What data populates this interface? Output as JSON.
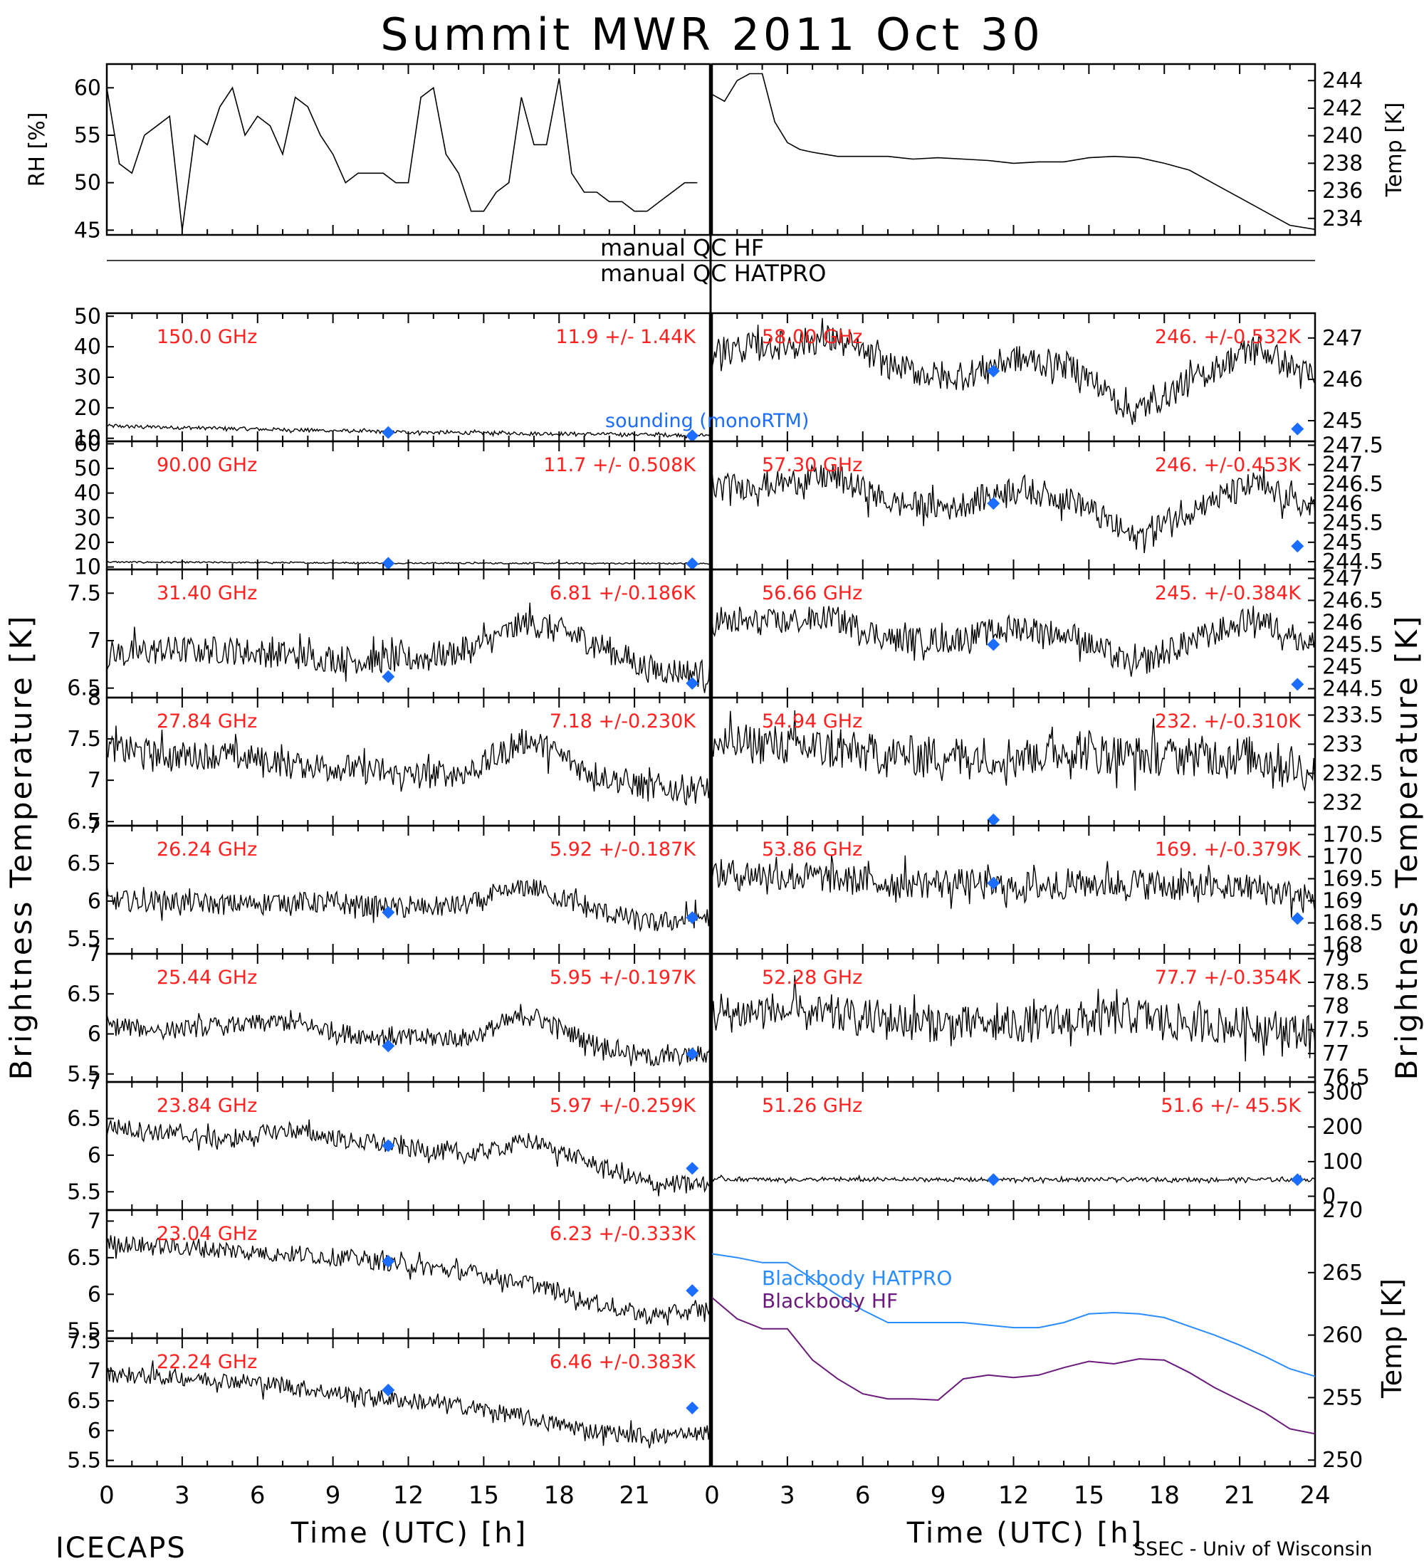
{
  "title": "Summit MWR 2011 Oct 30",
  "footer": {
    "left": "ICECAPS",
    "right": "SSEC - Univ of Wisconsin"
  },
  "xlabel": "Time (UTC) [h]",
  "ylabel_left": "Brightness Temperature [K]",
  "ylabel_right": "Brightness Temperature [K]",
  "qc": {
    "hf": "manual QC HF",
    "hatpro": "manual QC HATPRO"
  },
  "sounding_label": "sounding (monoRTM)",
  "colors": {
    "data": "#000000",
    "stats": "#ff2020",
    "sounding": "#1a6dff",
    "bb_hatpro": "#2a8cff",
    "bb_hf": "#6a1a7a"
  },
  "chart_data": [
    {
      "type": "line",
      "panel": "rh",
      "ylabel": "RH [%]",
      "ylim": [
        44.5,
        62.5
      ],
      "yticks": [
        45,
        50,
        55,
        60
      ],
      "xlim": [
        0,
        24
      ],
      "x": [
        0,
        0.5,
        1,
        1.5,
        2,
        2.5,
        3,
        3.5,
        4,
        4.5,
        5,
        5.5,
        6,
        6.5,
        7,
        7.5,
        8,
        8.5,
        9,
        9.5,
        10,
        10.5,
        11,
        11.5,
        12,
        12.5,
        13,
        13.5,
        14,
        14.5,
        15,
        15.5,
        16,
        16.5,
        17,
        17.5,
        18,
        18.5,
        19,
        19.5,
        20,
        20.5,
        21,
        21.5,
        22,
        22.5,
        23,
        23.5
      ],
      "values": [
        60,
        52,
        51,
        55,
        56,
        57,
        45,
        55,
        54,
        58,
        60,
        55,
        57,
        56,
        53,
        59,
        58,
        55,
        53,
        50,
        51,
        51,
        51,
        50,
        50,
        59,
        60,
        53,
        51,
        47,
        47,
        49,
        50,
        59,
        54,
        54,
        61,
        51,
        49,
        49,
        48,
        48,
        47,
        47,
        48,
        49,
        50,
        50
      ]
    },
    {
      "type": "line",
      "panel": "temp",
      "ylabel": "Temp [K]",
      "ylim": [
        232.8,
        245.2
      ],
      "yticks": [
        234,
        236,
        238,
        240,
        242,
        244
      ],
      "xlim": [
        0,
        24
      ],
      "x": [
        0,
        0.5,
        1,
        1.5,
        2,
        2.5,
        3,
        3.5,
        4,
        5,
        6,
        7,
        8,
        9,
        10,
        11,
        12,
        13,
        14,
        15,
        16,
        17,
        18,
        19,
        20,
        21,
        22,
        23,
        24
      ],
      "values": [
        243,
        242.5,
        244,
        244.5,
        244.5,
        241,
        239.5,
        239,
        238.8,
        238.5,
        238.5,
        238.5,
        238.3,
        238.4,
        238.3,
        238.2,
        238.0,
        238.1,
        238.1,
        238.4,
        238.5,
        238.4,
        238.0,
        237.5,
        236.5,
        235.5,
        234.5,
        233.5,
        233.2
      ]
    },
    {
      "type": "line",
      "panel": "hf",
      "freq": "150.0 GHz",
      "stats": "11.9 +/- 1.44K",
      "ylim": [
        9,
        51
      ],
      "yticks": [
        10,
        20,
        30,
        40,
        50
      ],
      "xlim": [
        0,
        24
      ],
      "base": [
        14,
        13,
        12,
        11.5,
        11
      ],
      "noise": 0.6,
      "sounding": [
        [
          11.2,
          11.9
        ],
        [
          23.3,
          10.8
        ]
      ]
    },
    {
      "type": "line",
      "panel": "hf",
      "freq": "90.00 GHz",
      "stats": "11.7 +/- 0.508K",
      "ylim": [
        9,
        61
      ],
      "yticks": [
        10,
        20,
        30,
        40,
        50,
        60
      ],
      "xlim": [
        0,
        24
      ],
      "base": [
        12,
        11.8,
        11.6,
        11.5,
        11.4
      ],
      "noise": 0.3,
      "sounding": [
        [
          11.2,
          11.5
        ],
        [
          23.3,
          11.3
        ]
      ]
    },
    {
      "type": "line",
      "panel": "hatpro",
      "freq": "31.40 GHz",
      "stats": "6.81 +/-0.186K",
      "ylim": [
        6.4,
        7.75
      ],
      "yticks": [
        6.5,
        7.0,
        7.5
      ],
      "xlim": [
        0,
        24
      ],
      "base": [
        6.85,
        6.9,
        6.9,
        6.85,
        6.8,
        6.8,
        6.9,
        7.2,
        7.0,
        6.7,
        6.65
      ],
      "noise": 0.15,
      "sounding": [
        [
          11.2,
          6.62
        ],
        [
          23.3,
          6.55
        ]
      ]
    },
    {
      "type": "line",
      "panel": "hatpro",
      "freq": "27.84 GHz",
      "stats": "7.18 +/-0.230K",
      "ylim": [
        6.45,
        8.0
      ],
      "yticks": [
        6.5,
        7.0,
        7.5,
        8.0
      ],
      "xlim": [
        0,
        24
      ],
      "base": [
        7.4,
        7.3,
        7.3,
        7.2,
        7.15,
        7.05,
        7.1,
        7.5,
        7.1,
        6.9,
        6.9
      ],
      "noise": 0.17,
      "sounding": []
    },
    {
      "type": "line",
      "panel": "hatpro",
      "freq": "26.24 GHz",
      "stats": "5.92 +/-0.187K",
      "ylim": [
        5.3,
        7.0
      ],
      "yticks": [
        5.5,
        6.0,
        6.5,
        7.0
      ],
      "xlim": [
        0,
        24
      ],
      "base": [
        6.0,
        6.0,
        5.95,
        6.0,
        5.95,
        5.9,
        5.95,
        6.2,
        5.9,
        5.7,
        5.8
      ],
      "noise": 0.14,
      "sounding": [
        [
          11.2,
          5.85
        ],
        [
          23.3,
          5.78
        ]
      ]
    },
    {
      "type": "line",
      "panel": "hatpro",
      "freq": "25.44 GHz",
      "stats": "5.95 +/-0.197K",
      "ylim": [
        5.4,
        7.0
      ],
      "yticks": [
        5.5,
        6.0,
        6.5,
        7.0
      ],
      "xlim": [
        0,
        24
      ],
      "base": [
        6.1,
        6.05,
        6.1,
        6.15,
        6.0,
        5.95,
        5.95,
        6.25,
        5.9,
        5.7,
        5.75
      ],
      "noise": 0.12,
      "sounding": [
        [
          11.2,
          5.85
        ],
        [
          23.3,
          5.75
        ]
      ]
    },
    {
      "type": "line",
      "panel": "hatpro",
      "freq": "23.84 GHz",
      "stats": "5.97 +/-0.259K",
      "ylim": [
        5.25,
        7.0
      ],
      "yticks": [
        5.5,
        6.0,
        6.5,
        7.0
      ],
      "xlim": [
        0,
        24
      ],
      "base": [
        6.4,
        6.3,
        6.2,
        6.35,
        6.2,
        6.1,
        6.0,
        6.2,
        5.9,
        5.6,
        5.6
      ],
      "noise": 0.12,
      "sounding": [
        [
          11.2,
          6.13
        ],
        [
          23.3,
          5.82
        ]
      ]
    },
    {
      "type": "line",
      "panel": "hatpro",
      "freq": "23.04 GHz",
      "stats": "6.23 +/-0.333K",
      "ylim": [
        5.4,
        7.15
      ],
      "yticks": [
        5.5,
        6.0,
        6.5,
        7.0
      ],
      "xlim": [
        0,
        24
      ],
      "base": [
        6.7,
        6.65,
        6.6,
        6.55,
        6.5,
        6.4,
        6.3,
        6.15,
        5.9,
        5.7,
        5.8
      ],
      "noise": 0.12,
      "sounding": [
        [
          11.2,
          6.45
        ],
        [
          23.3,
          6.05
        ]
      ]
    },
    {
      "type": "line",
      "panel": "hatpro",
      "freq": "22.24 GHz",
      "stats": "6.46 +/-0.383K",
      "ylim": [
        5.4,
        7.55
      ],
      "yticks": [
        5.5,
        6.0,
        6.5,
        7.0,
        7.5
      ],
      "xlim": [
        0,
        24
      ],
      "base": [
        6.95,
        6.9,
        6.85,
        6.75,
        6.6,
        6.5,
        6.4,
        6.2,
        6.0,
        5.9,
        5.95
      ],
      "noise": 0.14,
      "sounding": [
        [
          11.2,
          6.68
        ],
        [
          23.3,
          6.38
        ]
      ]
    },
    {
      "type": "line",
      "panel": "hf",
      "freq": "58.00 GHz",
      "stats": "246. +/-0.532K",
      "ylim": [
        244.5,
        247.6
      ],
      "yticks": [
        245,
        246,
        247
      ],
      "xlim": [
        0,
        24
      ],
      "base": [
        246.7,
        246.8,
        247.0,
        246.3,
        246.0,
        246.5,
        246.3,
        245.2,
        246.0,
        246.8,
        246.0
      ],
      "noise": 0.35,
      "sounding": [
        [
          11.2,
          246.2
        ],
        [
          23.3,
          244.8
        ]
      ]
    },
    {
      "type": "line",
      "panel": "hf",
      "freq": "57.30 GHz",
      "stats": "246. +/-0.453K",
      "ylim": [
        244.3,
        247.6
      ],
      "yticks": [
        244.5,
        245.0,
        245.5,
        246.0,
        246.5,
        247.0,
        247.5
      ],
      "xlim": [
        0,
        24
      ],
      "base": [
        246.4,
        246.5,
        246.7,
        246.0,
        245.9,
        246.4,
        246.1,
        245.1,
        245.9,
        246.5,
        245.8
      ],
      "noise": 0.35,
      "sounding": [
        [
          11.2,
          246.0
        ],
        [
          23.3,
          244.9
        ]
      ]
    },
    {
      "type": "line",
      "panel": "hf",
      "freq": "56.66 GHz",
      "stats": "245. +/-0.384K",
      "ylim": [
        244.3,
        247.2
      ],
      "yticks": [
        244.5,
        245.0,
        245.5,
        246.0,
        246.5,
        247.0
      ],
      "xlim": [
        0,
        24
      ],
      "base": [
        246.0,
        246.0,
        246.1,
        245.6,
        245.6,
        245.9,
        245.7,
        245.0,
        245.6,
        246.1,
        245.5
      ],
      "noise": 0.3,
      "sounding": [
        [
          11.2,
          245.5
        ],
        [
          23.3,
          244.6
        ]
      ]
    },
    {
      "type": "line",
      "panel": "hf",
      "freq": "54.94 GHz",
      "stats": "232. +/-0.310K",
      "ylim": [
        231.6,
        233.8
      ],
      "yticks": [
        232.0,
        232.5,
        233.0,
        233.5
      ],
      "xlim": [
        0,
        24
      ],
      "base": [
        233.0,
        233.0,
        232.9,
        232.8,
        232.8,
        232.8,
        232.9,
        232.8,
        232.8,
        232.8,
        232.5
      ],
      "noise": 0.35,
      "sounding": [
        [
          11.2,
          231.7
        ]
      ]
    },
    {
      "type": "line",
      "panel": "hf",
      "freq": "53.86 GHz",
      "stats": "169. +/-0.379K",
      "ylim": [
        167.8,
        170.7
      ],
      "yticks": [
        168.0,
        168.5,
        169.0,
        169.5,
        170.0,
        170.5
      ],
      "xlim": [
        0,
        24
      ],
      "base": [
        169.6,
        169.6,
        169.5,
        169.4,
        169.4,
        169.3,
        169.4,
        169.4,
        169.3,
        169.3,
        169.0
      ],
      "noise": 0.35,
      "sounding": [
        [
          11.2,
          169.4
        ],
        [
          23.3,
          168.6
        ]
      ]
    },
    {
      "type": "line",
      "panel": "hf",
      "freq": "52.28 GHz",
      "stats": "77.7 +/-0.354K",
      "ylim": [
        76.4,
        79.1
      ],
      "yticks": [
        76.5,
        77.0,
        77.5,
        78.0,
        78.5,
        79.0
      ],
      "xlim": [
        0,
        24
      ],
      "base": [
        77.8,
        77.9,
        77.8,
        77.7,
        77.6,
        77.6,
        77.7,
        77.8,
        77.6,
        77.6,
        77.4
      ],
      "noise": 0.4,
      "sounding": []
    },
    {
      "type": "line",
      "panel": "hf",
      "freq": "51.26 GHz",
      "stats": "51.6 +/- 45.5K",
      "ylim": [
        -40,
        330
      ],
      "yticks": [
        0,
        100,
        200,
        300
      ],
      "xlim": [
        0,
        24
      ],
      "base": [
        50,
        48,
        48,
        48,
        48,
        48,
        48,
        48,
        48,
        48,
        48
      ],
      "noise": 6,
      "sounding": [
        [
          11.2,
          48
        ],
        [
          23.3,
          48
        ]
      ]
    },
    {
      "type": "line",
      "panel": "blackbody",
      "ylabel": "Temp [K]",
      "ylim": [
        249.5,
        270
      ],
      "yticks": [
        250,
        255,
        260,
        265,
        270
      ],
      "xlim": [
        0,
        24
      ],
      "x": [
        0,
        1,
        2,
        3,
        4,
        5,
        6,
        7,
        8,
        9,
        10,
        11,
        12,
        13,
        14,
        15,
        16,
        17,
        18,
        19,
        20,
        21,
        22,
        23,
        24
      ],
      "series": [
        {
          "name": "Blackbody HATPRO",
          "values": [
            266.5,
            266.2,
            265.8,
            265.8,
            264.5,
            263.2,
            262.0,
            261.0,
            261.0,
            261.0,
            261.0,
            260.8,
            260.6,
            260.6,
            261.0,
            261.7,
            261.8,
            261.7,
            261.4,
            260.7,
            260.0,
            259.2,
            258.3,
            257.3,
            256.7
          ]
        },
        {
          "name": "Blackbody HF",
          "values": [
            263.0,
            261.3,
            260.5,
            260.5,
            258.0,
            256.5,
            255.3,
            254.9,
            254.9,
            254.8,
            256.5,
            256.8,
            256.6,
            256.8,
            257.4,
            257.9,
            257.7,
            258.1,
            258.0,
            257.0,
            255.8,
            254.8,
            253.8,
            252.5,
            252.1
          ]
        }
      ]
    }
  ]
}
